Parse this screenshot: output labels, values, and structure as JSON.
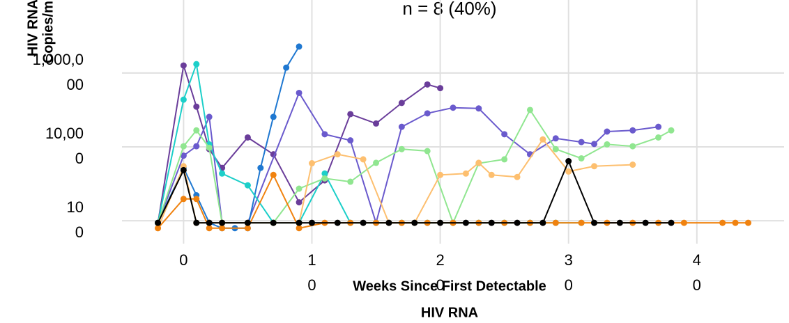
{
  "chart_data": {
    "type": "line",
    "title": "n = 8 (40%)",
    "ylabel": [
      "HIV RNA",
      "Copies/mL"
    ],
    "xlabel": [
      "Weeks Since First Detectable",
      "HIV RNA"
    ],
    "xlim": [
      -4.8,
      46.8
    ],
    "xticks": [
      0,
      10,
      20,
      30,
      40
    ],
    "ylim": [
      24,
      95000000
    ],
    "log_y": true,
    "yticks": [
      {
        "value": 100,
        "label": "100"
      },
      {
        "value": 10000,
        "label": "10,000"
      },
      {
        "value": 1000000,
        "label": "1,000,000"
      }
    ],
    "grid": true,
    "series": [
      {
        "color": "#6a3d9a",
        "x": [
          -2,
          0,
          1,
          2,
          3,
          5,
          7,
          9,
          11,
          13,
          15,
          17,
          19,
          20
        ],
        "values": [
          88,
          1600000,
          123000,
          8700,
          2700,
          18000,
          6300,
          316,
          1240,
          77000,
          43000,
          155000,
          490000,
          390000
        ]
      },
      {
        "color": "#6a5acd",
        "x": [
          -2,
          0,
          1,
          2,
          3,
          5,
          9,
          11,
          13,
          15,
          17,
          19,
          21,
          23,
          25,
          27,
          29,
          31,
          32,
          33,
          35,
          37
        ],
        "values": [
          88,
          5800,
          10400,
          65000,
          88,
          88,
          290000,
          22000,
          15000,
          88,
          35000,
          81000,
          115000,
          110000,
          22000,
          6300,
          17000,
          13500,
          12000,
          26000,
          28000,
          35000
        ]
      },
      {
        "color": "#1f78d1",
        "x": [
          -2,
          0,
          1,
          2,
          3,
          4,
          5,
          6,
          7,
          8,
          9
        ],
        "values": [
          88,
          2700,
          490,
          88,
          63,
          63,
          63,
          2700,
          65000,
          1400000,
          5200000
        ]
      },
      {
        "color": "#1ccfc9",
        "x": [
          -2,
          0,
          1,
          2,
          3,
          5,
          7,
          9,
          11,
          13,
          15,
          17,
          19,
          21,
          23,
          25,
          27,
          29,
          31
        ],
        "values": [
          88,
          190000,
          1740000,
          11700,
          1900,
          910,
          88,
          88,
          1900,
          88,
          88,
          88,
          88,
          88,
          88,
          88,
          88,
          88,
          88
        ]
      },
      {
        "color": "#90e690",
        "x": [
          -2,
          0,
          1,
          2,
          3,
          5,
          7,
          9,
          11,
          13,
          15,
          17,
          19,
          21,
          23,
          25,
          27,
          29,
          31,
          33,
          35,
          37,
          38
        ],
        "values": [
          88,
          10400,
          28000,
          9500,
          88,
          88,
          88,
          740,
          1400,
          1140,
          3700,
          8700,
          7700,
          88,
          3600,
          4600,
          100000,
          8700,
          4900,
          11700,
          10400,
          18000,
          28000
        ]
      },
      {
        "color": "#fdbf6f",
        "x": [
          -2,
          0,
          1,
          2,
          3,
          5,
          7,
          9,
          10,
          12,
          14,
          16,
          18,
          20,
          22,
          23,
          24,
          26,
          28,
          30,
          32,
          35
        ],
        "values": [
          63,
          3000,
          88,
          88,
          88,
          88,
          88,
          88,
          3600,
          6300,
          4600,
          88,
          88,
          1740,
          1900,
          3700,
          1740,
          1530,
          16000,
          2150,
          3000,
          3300
        ]
      },
      {
        "color": "#f0820f",
        "x": [
          -2,
          0,
          1,
          2,
          3,
          5,
          7,
          9,
          11,
          13,
          15,
          17,
          19,
          21,
          23,
          25,
          27,
          29,
          31,
          33,
          35,
          37,
          39,
          42,
          43,
          44
        ],
        "values": [
          63,
          390,
          390,
          63,
          63,
          63,
          1740,
          63,
          88,
          88,
          88,
          88,
          88,
          88,
          88,
          88,
          88,
          88,
          88,
          88,
          88,
          88,
          88,
          88,
          88,
          88
        ]
      },
      {
        "color": "#000000",
        "x": [
          -2,
          0,
          1,
          2,
          3,
          5,
          7,
          9,
          10,
          12,
          14,
          16,
          18,
          20,
          22,
          24,
          26,
          28,
          30,
          32,
          34,
          36,
          38
        ],
        "values": [
          88,
          2350,
          88,
          88,
          88,
          88,
          88,
          88,
          88,
          88,
          88,
          88,
          88,
          88,
          88,
          88,
          88,
          88,
          4100,
          88,
          88,
          88,
          88
        ]
      }
    ]
  }
}
